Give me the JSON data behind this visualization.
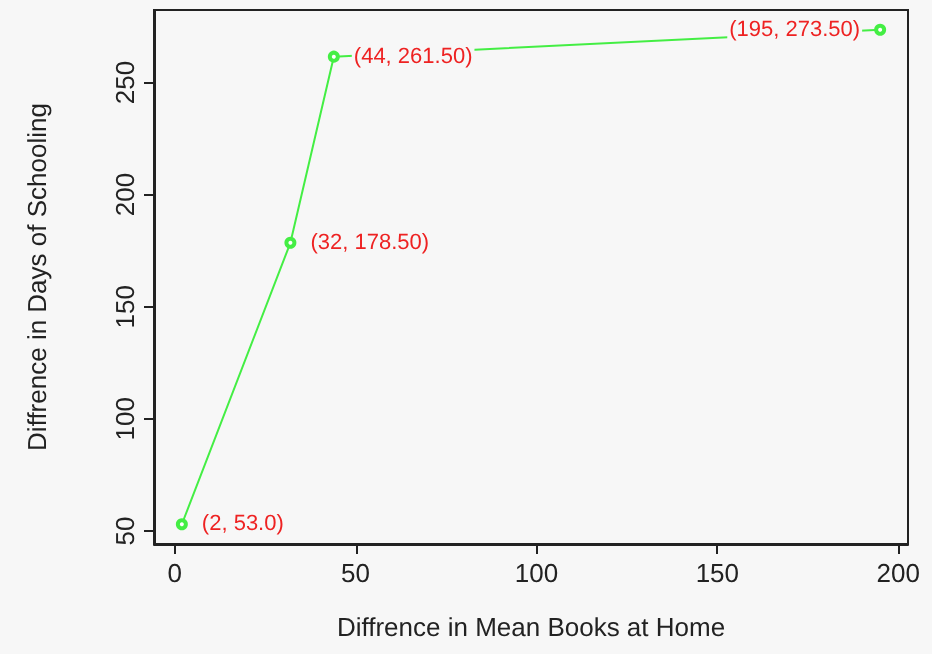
{
  "chart_data": {
    "type": "line",
    "xlabel": "Diffrence in Mean Books at Home",
    "ylabel": "Diffrence in Days of Schooling",
    "x": [
      2,
      32,
      44,
      195
    ],
    "series": [
      {
        "color": "#44ee44",
        "values": [
          53.0,
          178.5,
          261.5,
          273.5
        ],
        "value_labels": [
          "(2, 53.0)",
          "(32, 178.50)",
          "(44, 261.50)",
          "(195, 273.50)"
        ]
      }
    ],
    "xlim": [
      -5.7,
      202.7
    ],
    "xticks": [
      0,
      50,
      100,
      150,
      200
    ],
    "ylim": [
      44.2,
      282.3
    ],
    "yticks": [
      50,
      100,
      150,
      200,
      250
    ],
    "grid": false,
    "marker": "circle",
    "line_style": "solid"
  }
}
